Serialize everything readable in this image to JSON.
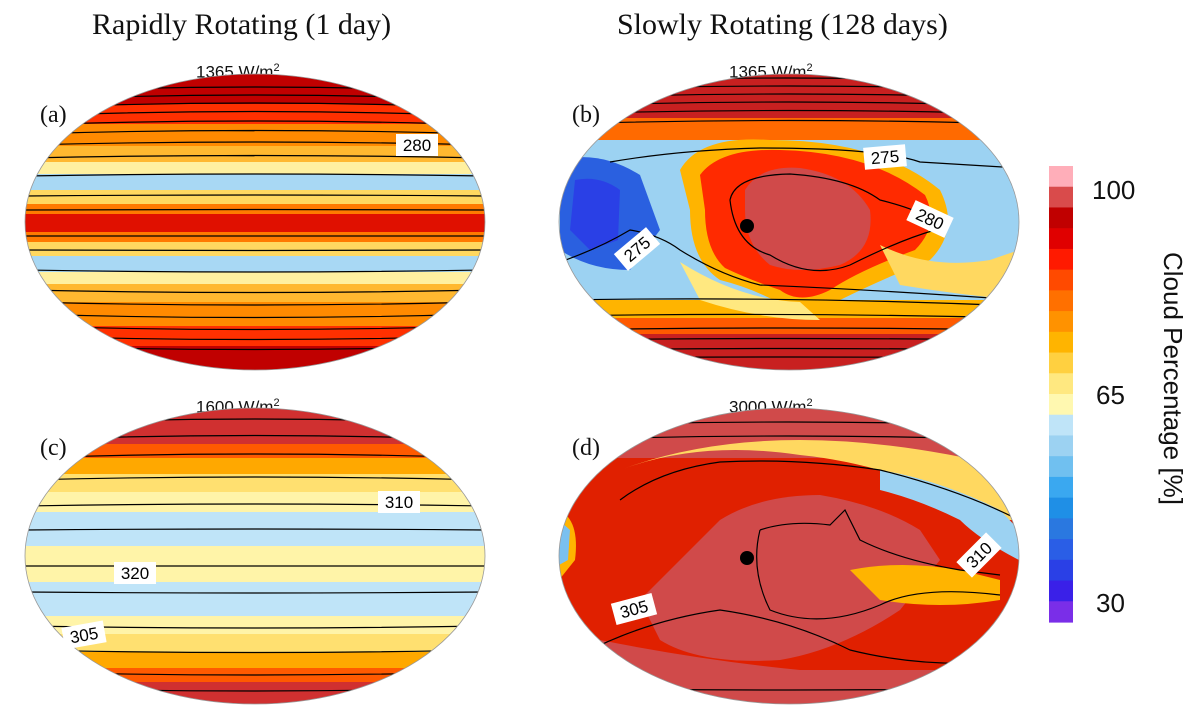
{
  "column_titles": {
    "left": "Rapidly Rotating (1 day)",
    "right": "Slowly Rotating (128 days)"
  },
  "chart_data": [
    {
      "type": "heatmap",
      "panel": "(a)",
      "title": "1365 W/m",
      "title_sup": "2",
      "rotation": "rapid",
      "contour_labels": [
        "280"
      ],
      "substellar_point": false
    },
    {
      "type": "heatmap",
      "panel": "(b)",
      "title": "1365 W/m",
      "title_sup": "2",
      "rotation": "slow",
      "contour_labels": [
        "275",
        "280",
        "275"
      ],
      "substellar_point": true
    },
    {
      "type": "heatmap",
      "panel": "(c)",
      "title": "1600 W/m",
      "title_sup": "2",
      "rotation": "rapid",
      "contour_labels": [
        "310",
        "320",
        "305"
      ],
      "substellar_point": false
    },
    {
      "type": "heatmap",
      "panel": "(d)",
      "title": "3000 W/m",
      "title_sup": "2",
      "rotation": "slow",
      "contour_labels": [
        "310",
        "305"
      ],
      "substellar_point": true
    }
  ],
  "colorbar": {
    "title": "Cloud Percentage [%]",
    "tick_labels": [
      "100",
      "65",
      "30"
    ],
    "range": [
      30,
      100
    ],
    "colors": [
      "#ffaeb9",
      "#d94b4b",
      "#c00000",
      "#e00000",
      "#ff1a00",
      "#ff4a00",
      "#ff7000",
      "#ff9200",
      "#ffb400",
      "#ffd040",
      "#ffe880",
      "#fff8b0",
      "#bfe4f8",
      "#9cd2f2",
      "#70c0f0",
      "#3aa8f0",
      "#1f8fe6",
      "#2a78e0",
      "#2a5ee6",
      "#2a40e6",
      "#3a20e8",
      "#7a2ee8"
    ]
  }
}
